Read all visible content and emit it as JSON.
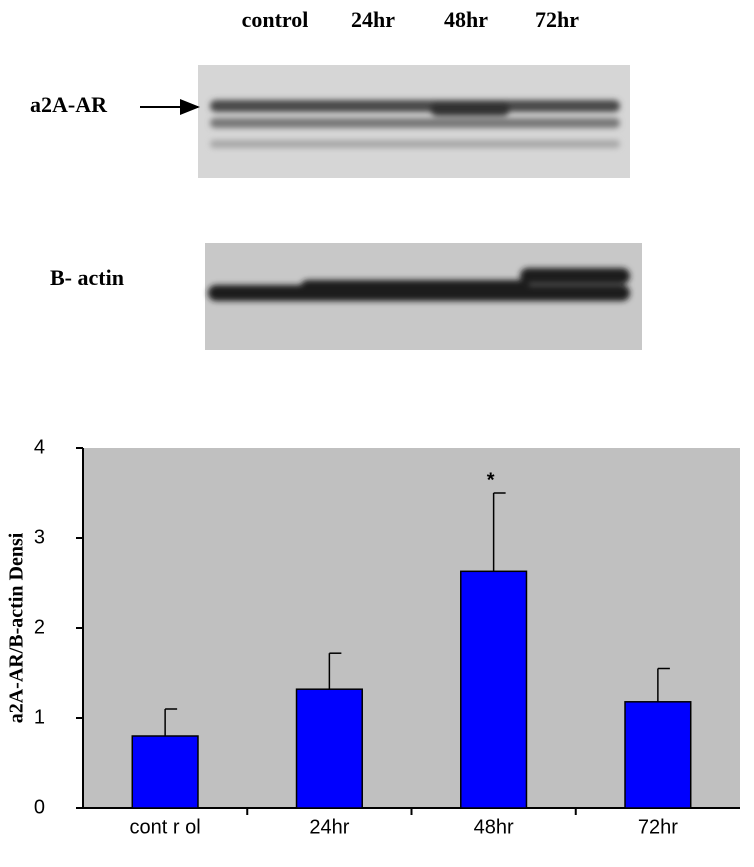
{
  "blot": {
    "lanes": [
      "control",
      "24hr",
      "48hr",
      "72hr"
    ],
    "target_label": "a2A-AR",
    "control_label": "B- actin"
  },
  "chart_data": {
    "type": "bar",
    "ylabel": "a2A-AR/B-actin Densi",
    "categories": [
      "cont r ol",
      "24hr",
      "48hr",
      "72hr"
    ],
    "values": [
      0.8,
      1.32,
      2.63,
      1.18
    ],
    "errors": [
      0.3,
      0.4,
      0.87,
      0.37
    ],
    "color": "#0000ff",
    "ylim": [
      0,
      4
    ],
    "yticks": [
      0,
      1,
      2,
      3,
      4
    ],
    "annotation": "*",
    "background": "#c0c0c0"
  }
}
